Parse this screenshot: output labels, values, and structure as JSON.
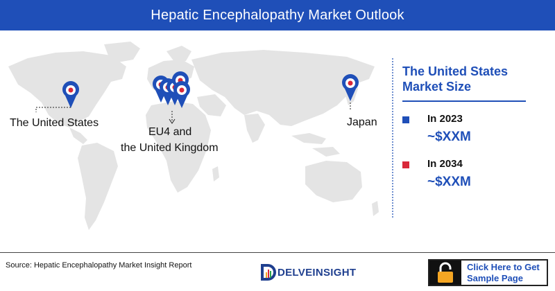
{
  "header": {
    "title": "Hepatic Encephalopathy Market Outlook"
  },
  "map": {
    "labels": {
      "us": "The United States",
      "eu_line1": "EU4 and",
      "eu_line2": "the United Kingdom",
      "japan": "Japan"
    },
    "pin_color": "#1f4fb8",
    "land_color": "#e4e4e4"
  },
  "panel": {
    "title_line1": "The United States",
    "title_line2": "Market Size",
    "entries": [
      {
        "year_label": "In 2023",
        "value": "~$XXM",
        "marker_color": "#1f4fb8"
      },
      {
        "year_label": "In 2034",
        "value": "~$XXM",
        "marker_color": "#d9283a"
      }
    ]
  },
  "footer": {
    "source": "Source: Hepatic Encephalopathy Market Insight Report",
    "logo_text": "DELVEINSIGHT",
    "cta_line1": "Click Here to Get",
    "cta_line2": "Sample Page"
  }
}
